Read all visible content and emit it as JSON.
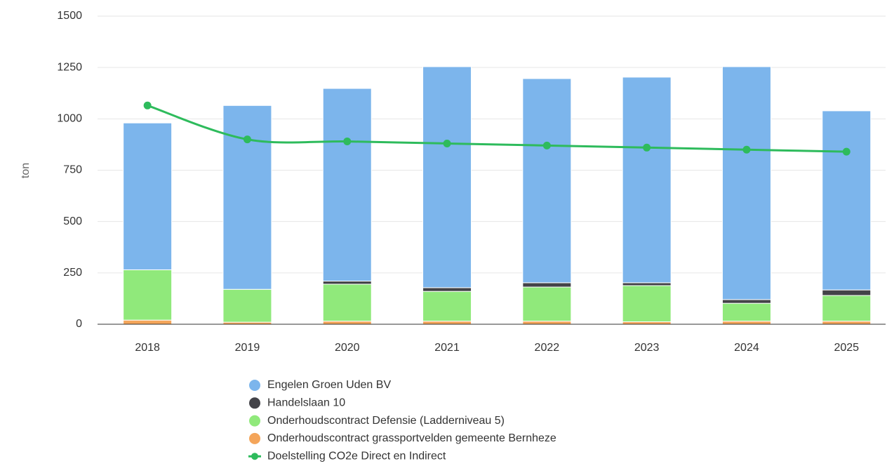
{
  "chart_data": {
    "type": "bar",
    "stacked": true,
    "y_label": "ton",
    "categories": [
      "2018",
      "2019",
      "2020",
      "2021",
      "2022",
      "2023",
      "2024",
      "2025"
    ],
    "ylim": [
      0,
      1500
    ],
    "yticks": [
      0,
      250,
      500,
      750,
      1000,
      1250,
      1500
    ],
    "grid": true,
    "series": [
      {
        "name": "Onderhoudscontract grassportvelden gemeente Bernheze",
        "color": "#f4a55a",
        "values": [
          20,
          10,
          15,
          15,
          15,
          12,
          15,
          15
        ]
      },
      {
        "name": "Onderhoudscontract Defensie (Ladderniveau 5)",
        "color": "#90e97b",
        "values": [
          245,
          160,
          180,
          145,
          166,
          176,
          87,
          125
        ]
      },
      {
        "name": "Handelslaan 10",
        "color": "#434348",
        "values": [
          0,
          0,
          15,
          18,
          21,
          14,
          18,
          27
        ]
      },
      {
        "name": "Engelen Groen Uden BV",
        "color": "#7cb5ec",
        "values": [
          715,
          895,
          938,
          1076,
          994,
          1001,
          1134,
          872
        ]
      },
      {
        "name": "Doelstelling CO2e Direct en Indirect",
        "type": "line",
        "color": "#2ebb5c",
        "values": [
          1065,
          900,
          890,
          880,
          870,
          860,
          850,
          840
        ]
      }
    ],
    "legend_order": [
      3,
      2,
      1,
      0,
      4
    ]
  }
}
